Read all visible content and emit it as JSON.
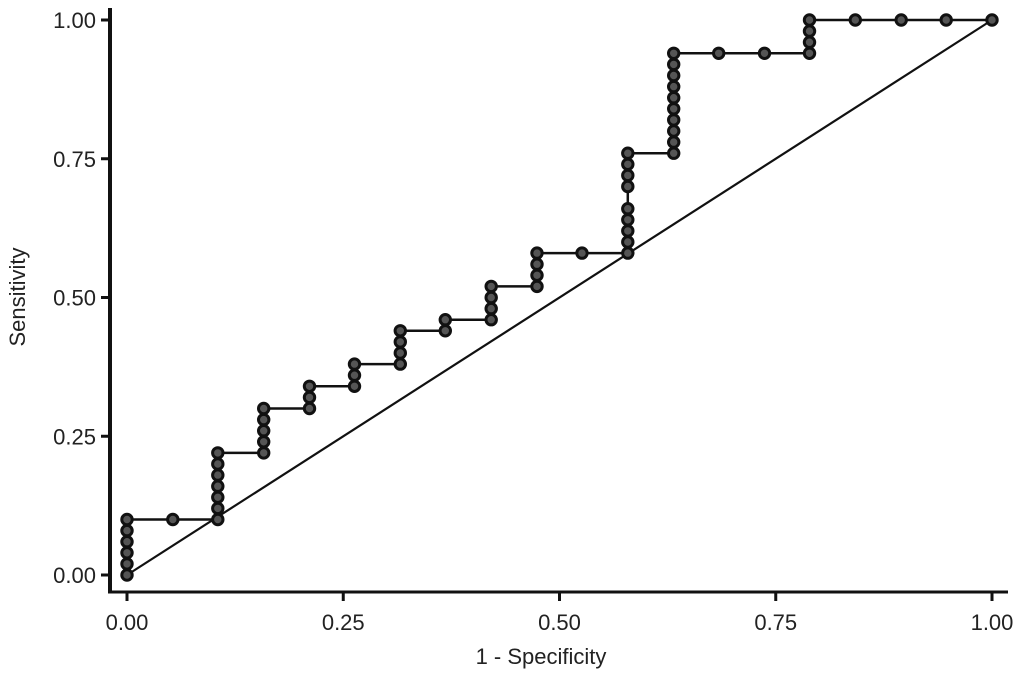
{
  "chart_data": {
    "type": "line",
    "subtype": "roc_curve_step",
    "title": "",
    "xlabel": "1 - Specificity",
    "ylabel": "Sensitivity",
    "xlim": [
      0,
      1
    ],
    "ylim": [
      0,
      1
    ],
    "grid": false,
    "legend": null,
    "x_ticks": [
      "0.00",
      "0.25",
      "0.50",
      "0.75",
      "1.00"
    ],
    "y_ticks": [
      "0.00",
      "0.25",
      "0.50",
      "0.75",
      "1.00"
    ],
    "series": [
      {
        "name": "ROC curve",
        "style": "step line with circle markers",
        "color": "#111111",
        "points": [
          [
            0.0,
            0.0
          ],
          [
            0.0,
            0.02
          ],
          [
            0.0,
            0.04
          ],
          [
            0.0,
            0.06
          ],
          [
            0.0,
            0.08
          ],
          [
            0.0,
            0.1
          ],
          [
            0.053,
            0.1
          ],
          [
            0.105,
            0.1
          ],
          [
            0.105,
            0.12
          ],
          [
            0.105,
            0.14
          ],
          [
            0.105,
            0.16
          ],
          [
            0.105,
            0.18
          ],
          [
            0.105,
            0.2
          ],
          [
            0.105,
            0.22
          ],
          [
            0.158,
            0.22
          ],
          [
            0.158,
            0.24
          ],
          [
            0.158,
            0.26
          ],
          [
            0.158,
            0.28
          ],
          [
            0.158,
            0.3
          ],
          [
            0.211,
            0.3
          ],
          [
            0.211,
            0.32
          ],
          [
            0.211,
            0.34
          ],
          [
            0.263,
            0.34
          ],
          [
            0.263,
            0.36
          ],
          [
            0.263,
            0.38
          ],
          [
            0.316,
            0.38
          ],
          [
            0.316,
            0.4
          ],
          [
            0.316,
            0.42
          ],
          [
            0.316,
            0.44
          ],
          [
            0.368,
            0.44
          ],
          [
            0.368,
            0.46
          ],
          [
            0.421,
            0.46
          ],
          [
            0.421,
            0.48
          ],
          [
            0.421,
            0.5
          ],
          [
            0.421,
            0.52
          ],
          [
            0.474,
            0.52
          ],
          [
            0.474,
            0.54
          ],
          [
            0.474,
            0.56
          ],
          [
            0.474,
            0.58
          ],
          [
            0.526,
            0.58
          ],
          [
            0.579,
            0.58
          ],
          [
            0.579,
            0.6
          ],
          [
            0.579,
            0.62
          ],
          [
            0.579,
            0.64
          ],
          [
            0.579,
            0.66
          ],
          [
            0.579,
            0.7
          ],
          [
            0.579,
            0.72
          ],
          [
            0.579,
            0.74
          ],
          [
            0.579,
            0.76
          ],
          [
            0.632,
            0.76
          ],
          [
            0.632,
            0.78
          ],
          [
            0.632,
            0.8
          ],
          [
            0.632,
            0.82
          ],
          [
            0.632,
            0.84
          ],
          [
            0.632,
            0.86
          ],
          [
            0.632,
            0.88
          ],
          [
            0.632,
            0.9
          ],
          [
            0.632,
            0.92
          ],
          [
            0.632,
            0.94
          ],
          [
            0.684,
            0.94
          ],
          [
            0.737,
            0.94
          ],
          [
            0.789,
            0.94
          ],
          [
            0.789,
            0.96
          ],
          [
            0.789,
            0.98
          ],
          [
            0.789,
            1.0
          ],
          [
            0.842,
            1.0
          ],
          [
            0.895,
            1.0
          ],
          [
            0.947,
            1.0
          ],
          [
            1.0,
            1.0
          ]
        ]
      },
      {
        "name": "Reference line",
        "style": "diagonal line",
        "color": "#111111",
        "points": [
          [
            0,
            0
          ],
          [
            1,
            1
          ]
        ]
      }
    ]
  },
  "layout": {
    "axis_color": "#111111",
    "plot_bg": "#ffffff"
  }
}
